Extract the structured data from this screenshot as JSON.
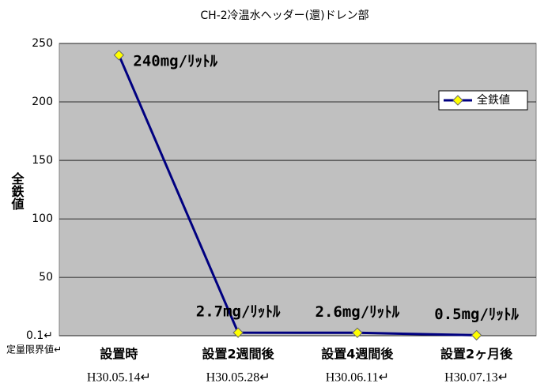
{
  "chart_data": {
    "type": "line",
    "title": "CH-2冷温水ヘッダー(還)ドレン部",
    "y_label": "全鉄値",
    "annotation": "定量限界値↵",
    "categories": [
      "設置時",
      "設置2週間後",
      "設置4週間後",
      "設置2ヶ月後"
    ],
    "dates": [
      "H30.05.14↵",
      "H30.05.28↵",
      "H30.06.11↵",
      "H30.07.13↵"
    ],
    "series": [
      {
        "name": "全鉄値",
        "color": "#000080",
        "marker_color": "#ffff00",
        "values": [
          240,
          2.7,
          2.6,
          0.5
        ],
        "value_labels": [
          "240mg/ﾘｯﾄﾙ",
          "2.7mg/ﾘｯﾄﾙ",
          "2.6mg/ﾘｯﾄﾙ",
          "0.5mg/ﾘｯﾄﾙ"
        ]
      }
    ],
    "ylim": [
      0.1,
      250
    ],
    "yticks": [
      {
        "value": 0.1,
        "label": "0.1↵"
      },
      50,
      100,
      150,
      200,
      250
    ],
    "grid": true,
    "legend": "upper right",
    "plot_background": "#c0c0c0"
  }
}
